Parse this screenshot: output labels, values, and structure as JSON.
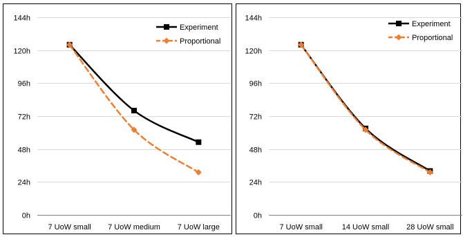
{
  "chart_data": [
    {
      "type": "line",
      "categories": [
        "7 UoW small",
        "7 UoW medium",
        "7 UoW large"
      ],
      "yticks": [
        "0h",
        "24h",
        "48h",
        "72h",
        "96h",
        "120h",
        "144h"
      ],
      "ylim": [
        0,
        144
      ],
      "grid": true,
      "legend_position": "top-right",
      "series": [
        {
          "name": "Experiment",
          "values": [
            124,
            76,
            53
          ],
          "color": "#000000",
          "marker": "square",
          "dash": "solid",
          "smooth": true
        },
        {
          "name": "Proportional",
          "values": [
            124,
            62,
            31
          ],
          "color": "#ED7D31",
          "marker": "diamond",
          "dash": "dashed",
          "smooth": true
        }
      ]
    },
    {
      "type": "line",
      "categories": [
        "7 UoW small",
        "14 UoW small",
        "28 UoW small"
      ],
      "yticks": [
        "0h",
        "24h",
        "48h",
        "72h",
        "96h",
        "120h",
        "144h"
      ],
      "ylim": [
        0,
        144
      ],
      "grid": true,
      "legend_position": "top-right",
      "series": [
        {
          "name": "Experiment",
          "values": [
            124,
            63,
            32
          ],
          "color": "#000000",
          "marker": "square",
          "dash": "solid",
          "smooth": true
        },
        {
          "name": "Proportional",
          "values": [
            124,
            62,
            31
          ],
          "color": "#ED7D31",
          "marker": "diamond",
          "dash": "dashed",
          "smooth": true
        }
      ]
    }
  ]
}
